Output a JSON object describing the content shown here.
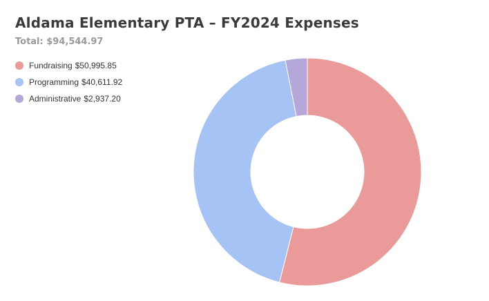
{
  "title": "Aldama Elementary PTA – FY2024 Expenses",
  "subtitle": "Total: $94,544.97",
  "chart_data": {
    "type": "pie",
    "donut": true,
    "title": "Aldama Elementary PTA – FY2024 Expenses",
    "subtitle": "Total: $94,544.97",
    "legend_position": "top-left",
    "slices": [
      {
        "label": "Fundraising",
        "value": 50995.85,
        "value_label": "$50,995.85",
        "color": "#ea9a98"
      },
      {
        "label": "Programming",
        "value": 40611.92,
        "value_label": "$40,611.92",
        "color": "#a5c3f5"
      },
      {
        "label": "Administrative",
        "value": 2937.2,
        "value_label": "$2,937.20",
        "color": "#b5a7d8"
      }
    ]
  }
}
